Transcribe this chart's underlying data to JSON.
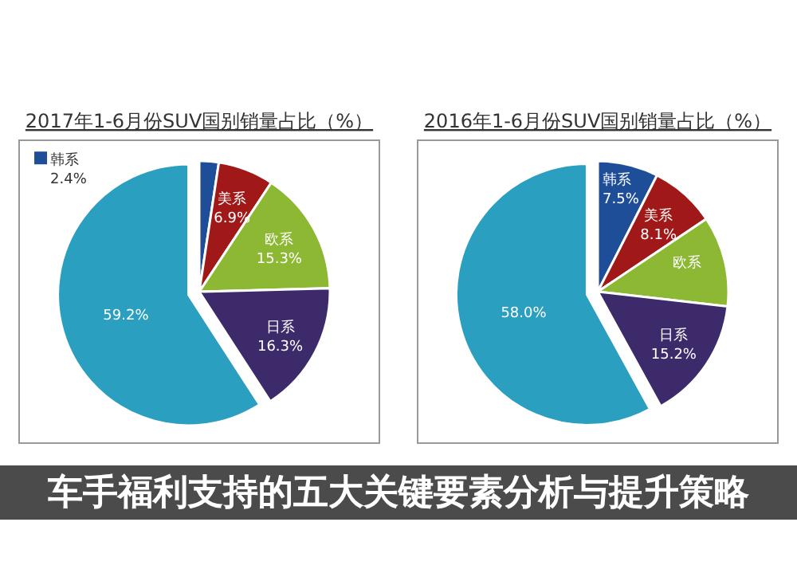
{
  "chart_data": [
    {
      "type": "pie",
      "title": "2017年1-6月份SUV国别销量占比（%）",
      "categories": [
        "韩系",
        "美系",
        "欧系",
        "日系",
        null
      ],
      "values": [
        2.4,
        6.9,
        15.3,
        16.3,
        59.2
      ],
      "value_labels": [
        "2.4%",
        "6.9%",
        "15.3%",
        "16.3%",
        "59.2%"
      ],
      "colors": [
        "#1f4e99",
        "#a01818",
        "#8db834",
        "#3d2a6b",
        "#2a9fc0"
      ],
      "annotations": [
        "车手福利支持的五大关键要素分析与提升策略"
      ]
    },
    {
      "type": "pie",
      "title": "2016年1-6月份SUV国别销量占比（%）",
      "categories": [
        "韩系",
        "美系",
        "欧系",
        "日系",
        null
      ],
      "values": [
        7.5,
        8.1,
        11.2,
        15.2,
        58.0
      ],
      "value_labels": [
        "7.5%",
        "8.1%",
        null,
        "15.2%",
        "58.0%"
      ],
      "colors": [
        "#1f4e99",
        "#a01818",
        "#8db834",
        "#3d2a6b",
        "#2a9fc0"
      ]
    }
  ]
}
